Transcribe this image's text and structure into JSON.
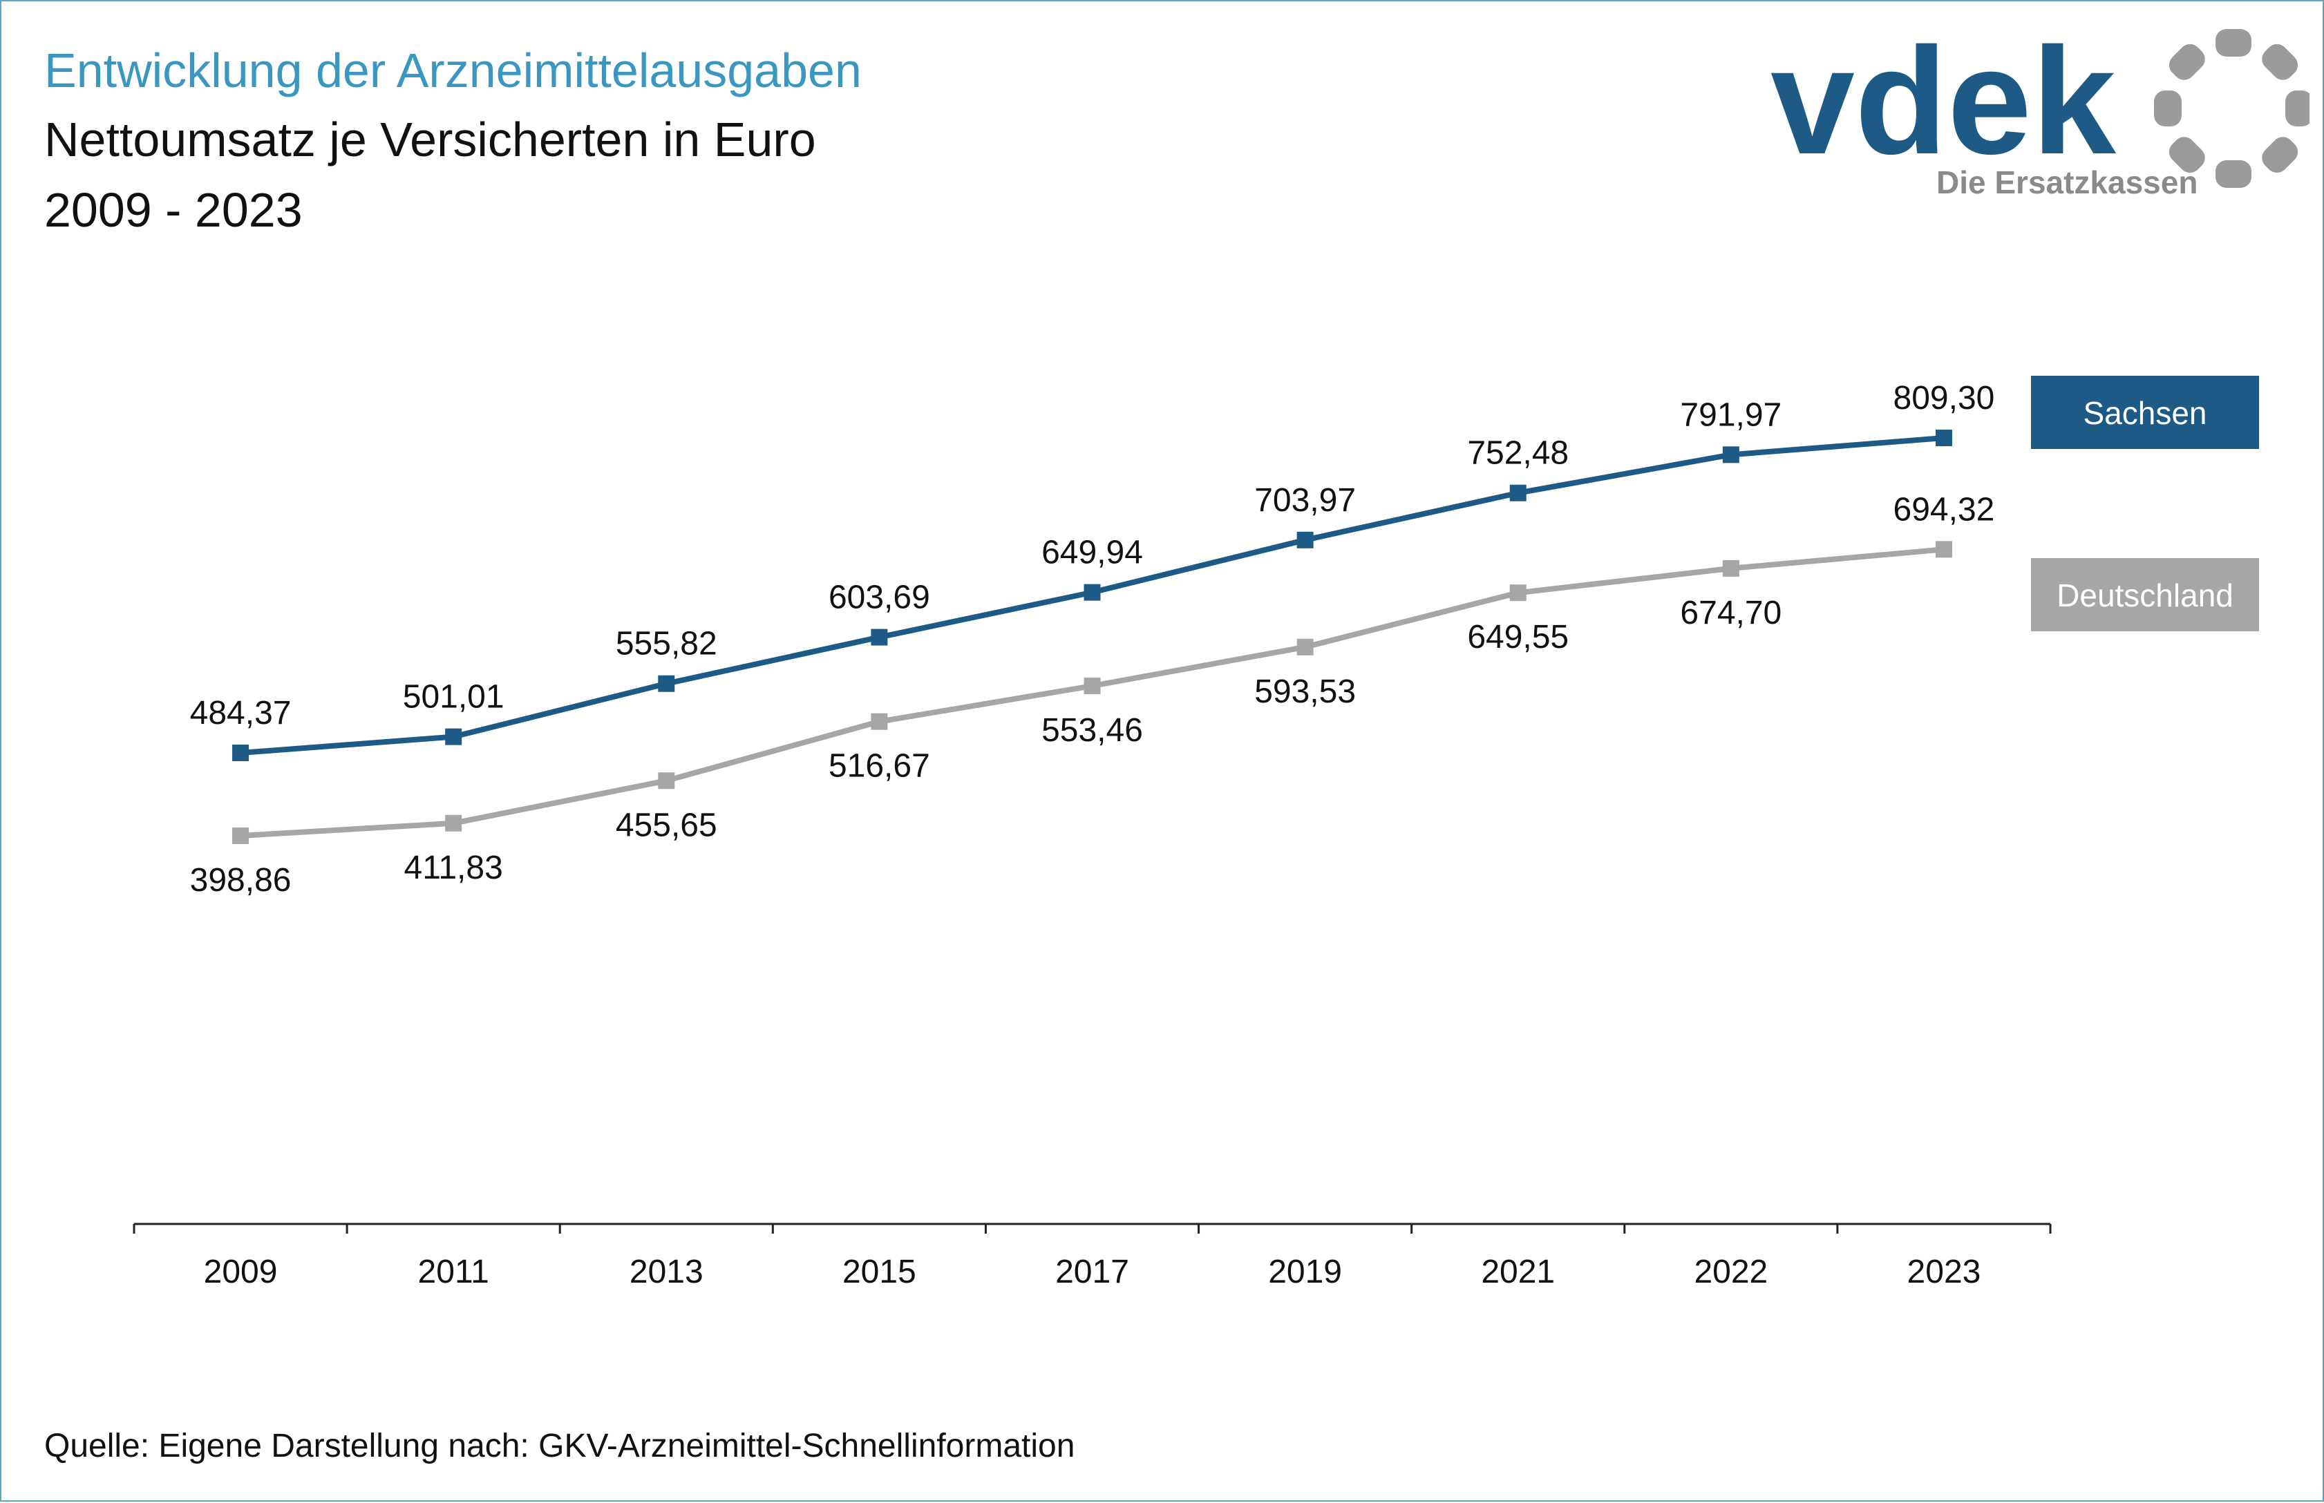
{
  "header": {
    "title": "Entwicklung der Arzneimittelausgaben",
    "subtitle": "Nettoumsatz je Versicherten in Euro",
    "period": "2009 - 2023"
  },
  "logo": {
    "wordmark": "vdek",
    "tagline": "Die Ersatzkassen",
    "brand_color": "#1d5a86",
    "accent_color": "#9b9b9b"
  },
  "footer": {
    "source": "Quelle: Eigene Darstellung nach: GKV-Arzneimittel-Schnellinformation"
  },
  "chart_data": {
    "type": "line",
    "categories": [
      "2009",
      "2011",
      "2013",
      "2015",
      "2017",
      "2019",
      "2021",
      "2022",
      "2023"
    ],
    "grid": false,
    "legend": "right",
    "series": [
      {
        "name": "Sachsen",
        "color": "#1d5a86",
        "values": [
          484.37,
          501.01,
          555.82,
          603.69,
          649.94,
          703.97,
          752.48,
          791.97,
          809.3
        ],
        "labels": [
          "484,37",
          "501,01",
          "555,82",
          "603,69",
          "649,94",
          "703,97",
          "752,48",
          "791,97",
          "809,30"
        ]
      },
      {
        "name": "Deutschland",
        "color": "#a6a6a6",
        "values": [
          398.86,
          411.83,
          455.65,
          516.67,
          553.46,
          593.53,
          649.55,
          674.7,
          694.32
        ],
        "labels": [
          "398,86",
          "411,83",
          "455,65",
          "516,67",
          "553,46",
          "593,53",
          "649,55",
          "674,70",
          "694,32"
        ]
      }
    ]
  }
}
